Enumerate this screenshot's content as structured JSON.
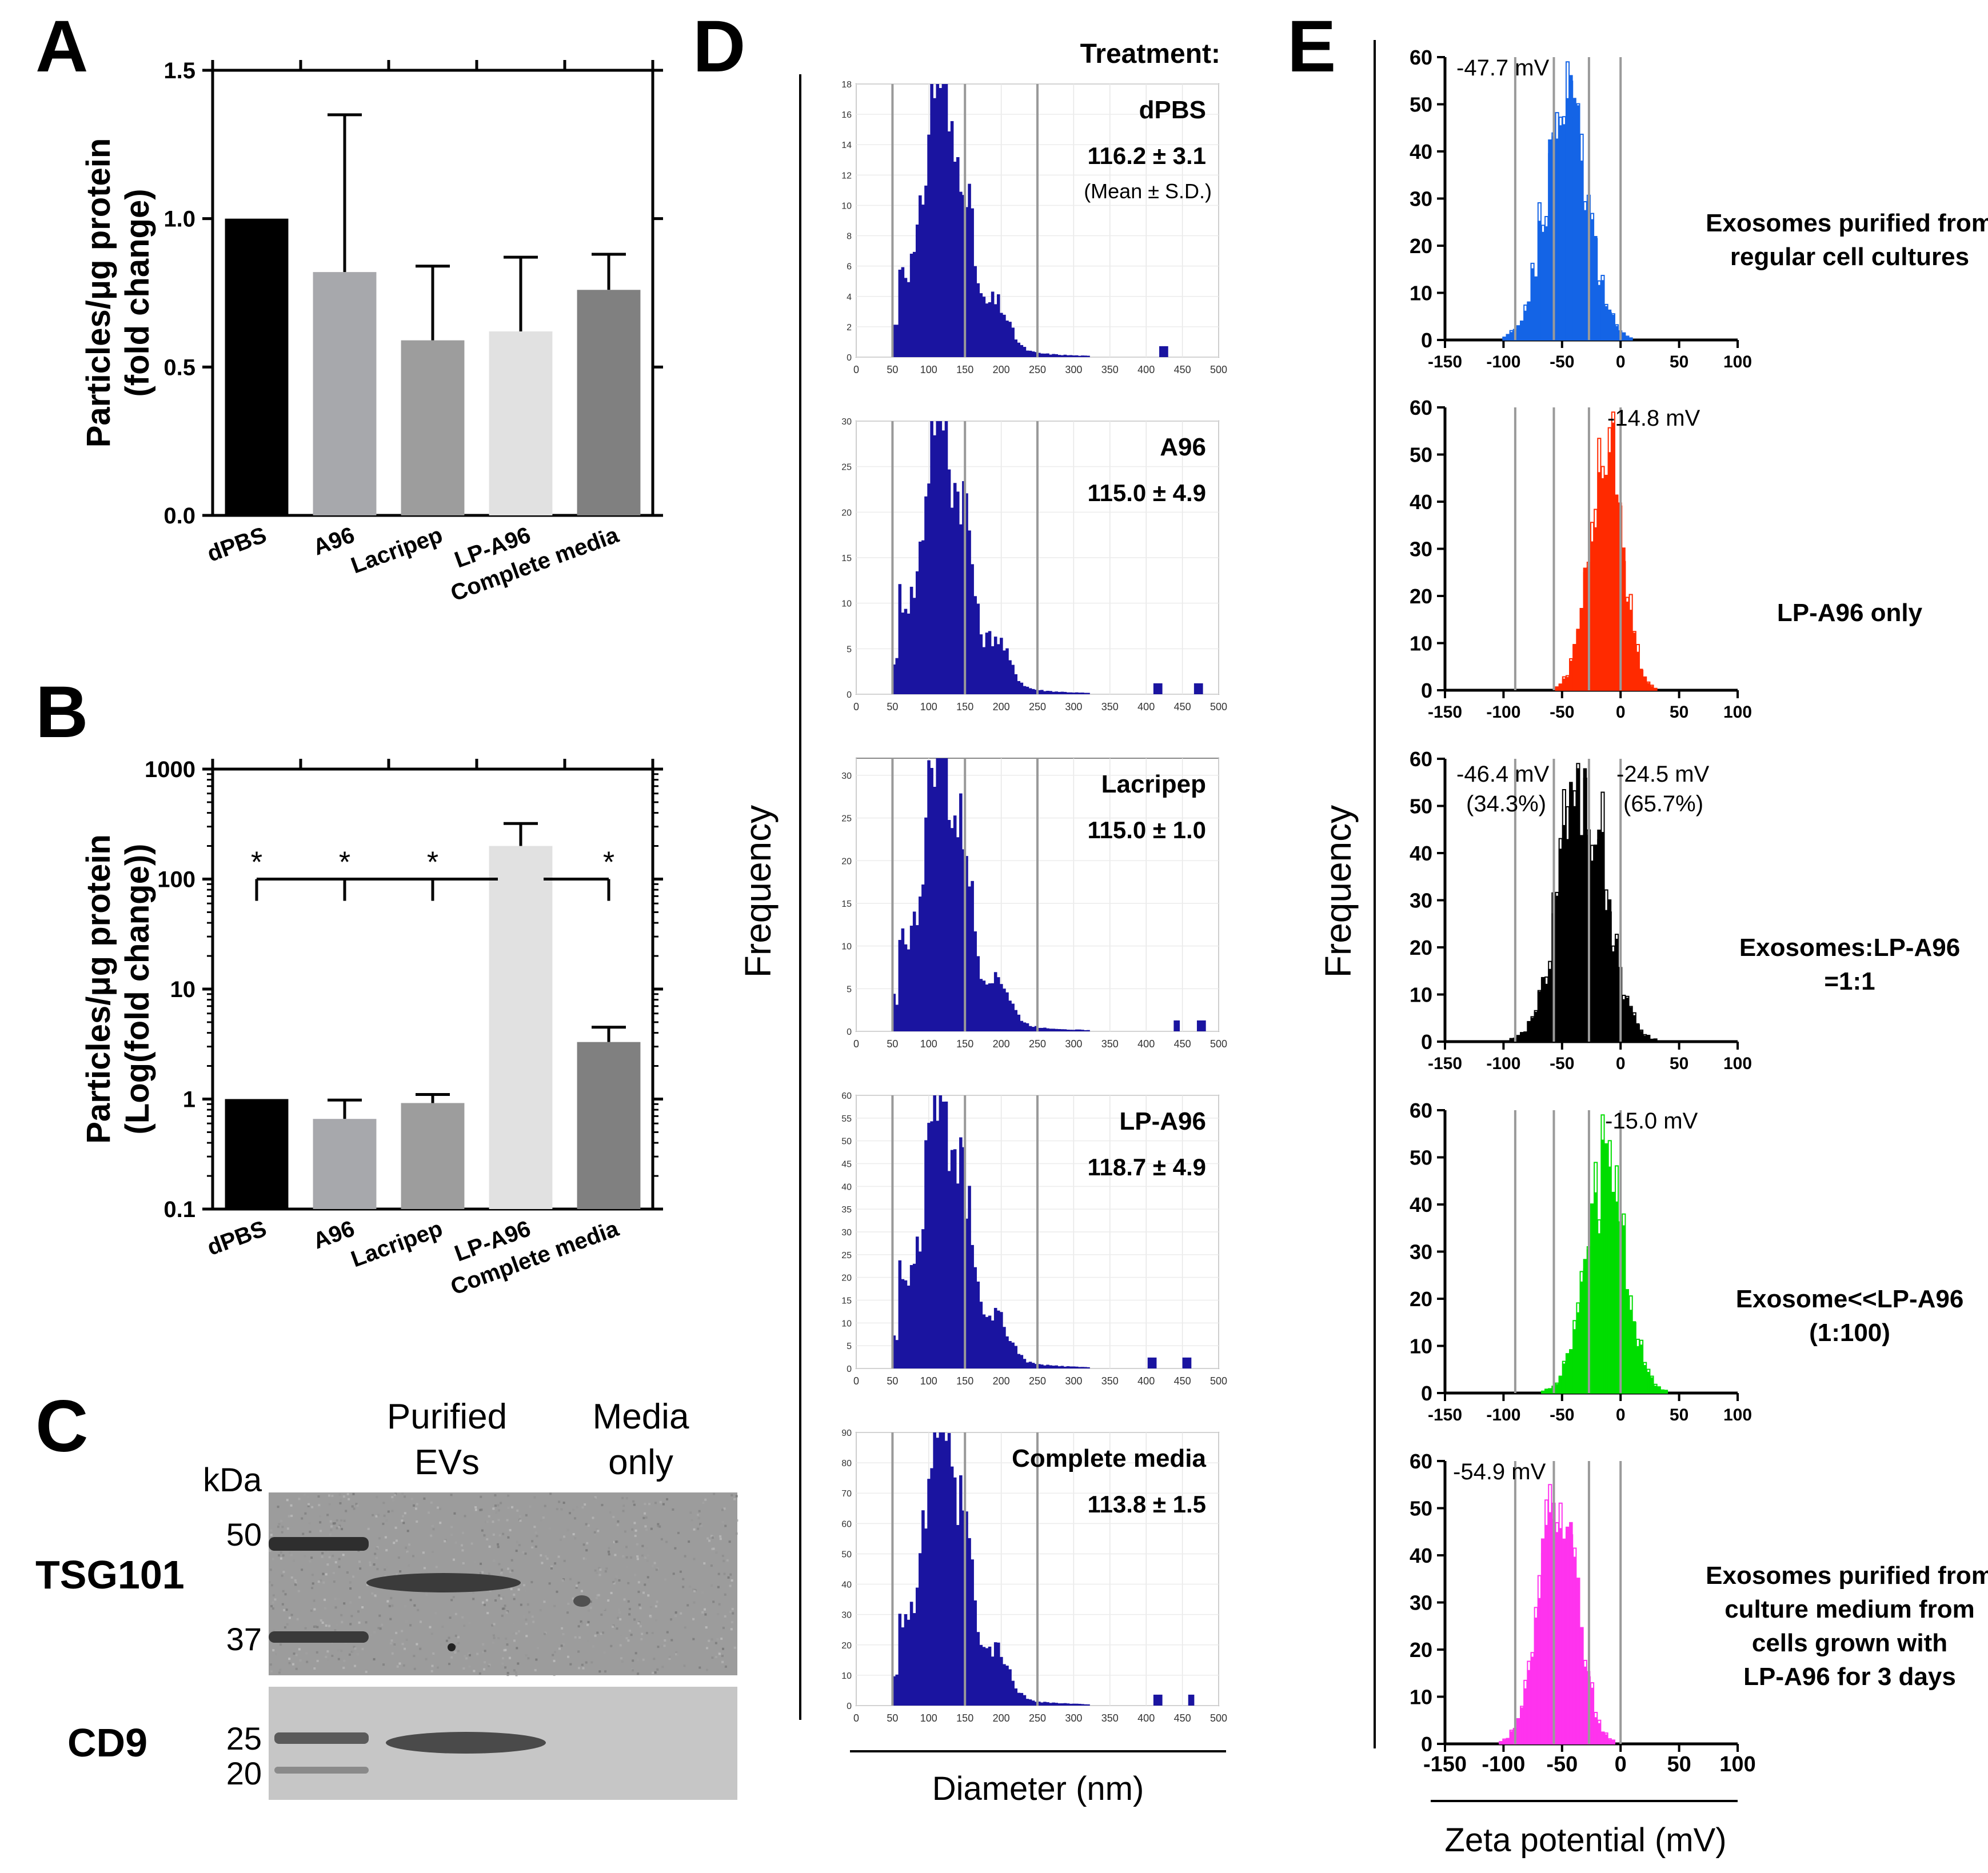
{
  "panel_letters": {
    "A": "A",
    "B": "B",
    "C": "C",
    "D": "D",
    "E": "E"
  },
  "chart_data": [
    {
      "panel": "A",
      "type": "bar",
      "ylabel_lines": [
        "Particles/μg protein",
        "(fold change)"
      ],
      "categories": [
        "dPBS",
        "A96",
        "Lacripep",
        "LP-A96",
        "Complete media"
      ],
      "values": [
        1.0,
        0.82,
        0.59,
        0.62,
        0.76
      ],
      "errors": [
        0.0,
        0.53,
        0.25,
        0.25,
        0.12
      ],
      "colors": [
        "#000000",
        "#a7a8ac",
        "#9d9d9d",
        "#e1e1e1",
        "#808080"
      ],
      "ylim": [
        0,
        1.5
      ],
      "yticks": [
        0,
        0.5,
        1.0,
        1.5
      ],
      "ytick_labels": [
        "0.0",
        "0.5",
        "1.0",
        "1.5"
      ]
    },
    {
      "panel": "B",
      "type": "bar",
      "yscale": "log",
      "ylabel_lines": [
        "Particles/μg protein",
        "(Log(fold change))"
      ],
      "categories": [
        "dPBS",
        "A96",
        "Lacripep",
        "LP-A96",
        "Complete media"
      ],
      "values": [
        1.0,
        0.66,
        0.92,
        200,
        3.3
      ],
      "error_upper": [
        1.0,
        0.98,
        1.1,
        320,
        4.5
      ],
      "colors": [
        "#000000",
        "#a7a8ac",
        "#9d9d9d",
        "#e1e1e1",
        "#808080"
      ],
      "ylim": [
        0.1,
        1000
      ],
      "yticks": [
        0.1,
        1,
        10,
        100,
        1000
      ],
      "ytick_labels": [
        "0.1",
        "1",
        "10",
        "100",
        "1000"
      ],
      "significance_marker": "*"
    },
    {
      "panel": "D",
      "type": "bar",
      "header": "Treatment:",
      "ylabel": "Frequency",
      "xlabel": "Diameter (nm)",
      "xlim": [
        0,
        500
      ],
      "xticks": [
        0,
        50,
        100,
        150,
        200,
        250,
        300,
        350,
        400,
        450,
        500
      ],
      "ref_lines": [
        50,
        150,
        250
      ],
      "bar_color": "#1a14a0",
      "subplots": [
        {
          "name": "dPBS",
          "stat": "116.2 ± 3.1",
          "note": "(Mean ± S.D.)",
          "ymax": 18,
          "yticks": [
            0,
            2,
            4,
            6,
            8,
            10,
            12,
            14,
            16,
            18
          ],
          "peak": 17,
          "extra": [
            {
              "x": 422,
              "h": 0.8
            }
          ]
        },
        {
          "name": "A96",
          "stat": "115.0 ± 4.9",
          "note": "",
          "ymax": 30,
          "yticks": [
            0,
            5,
            10,
            15,
            20,
            25,
            30
          ],
          "peak": 29.5,
          "extra": [
            {
              "x": 415,
              "h": 0.5
            },
            {
              "x": 470,
              "h": 0.4
            }
          ]
        },
        {
          "name": "Lacripep",
          "stat": "115.0 ± 1.0",
          "note": "",
          "ymax": 32,
          "yticks": [
            0,
            5,
            10,
            15,
            20,
            25,
            30
          ],
          "peak": 31,
          "extra": [
            {
              "x": 440,
              "h": 0.6
            },
            {
              "x": 475,
              "h": 0.6
            }
          ]
        },
        {
          "name": "LP-A96",
          "stat": "118.7 ± 4.9",
          "note": "",
          "ymax": 60,
          "yticks": [
            0,
            5,
            10,
            15,
            20,
            25,
            30,
            35,
            40,
            45,
            50,
            55,
            60
          ],
          "peak": 57,
          "extra": [
            {
              "x": 405,
              "h": 1
            },
            {
              "x": 455,
              "h": 0.8
            }
          ]
        },
        {
          "name": "Complete media",
          "stat": "113.8 ± 1.5",
          "note": "",
          "ymax": 90,
          "yticks": [
            0,
            10,
            20,
            30,
            40,
            50,
            60,
            70,
            80,
            90
          ],
          "peak": 86,
          "extra": [
            {
              "x": 415,
              "h": 1
            },
            {
              "x": 460,
              "h": 0.8
            }
          ]
        }
      ]
    },
    {
      "panel": "E",
      "type": "bar",
      "ylabel": "Frequency",
      "xlabel": "Zeta potential (mV)",
      "xlim": [
        -150,
        100
      ],
      "xticks": [
        -150,
        -100,
        -50,
        0,
        50,
        100
      ],
      "ylim": [
        0,
        60
      ],
      "yticks": [
        0,
        10,
        20,
        30,
        40,
        50,
        60
      ],
      "ref_lines": [
        -90,
        -57,
        -27,
        0
      ],
      "subplots": [
        {
          "color": "#1464e6",
          "mean": -47.7,
          "sd": 18,
          "peak": 52,
          "labels": [
            "-47.7 mV"
          ],
          "desc": [
            "Exosomes purified from",
            "regular cell cultures"
          ]
        },
        {
          "color": "#ff2a00",
          "mean": -14.8,
          "sd": 14,
          "peak": 55,
          "labels": [
            "-14.8 mV"
          ],
          "desc": [
            "LP-A96 only"
          ]
        },
        {
          "color": "#000000",
          "mean": -34,
          "sd": 20,
          "peak": 55,
          "labels": [
            "-46.4 mV",
            "(34.3%)",
            "-24.5 mV",
            "(65.7%)"
          ],
          "desc": [
            "Exosomes:LP-A96",
            "=1:1"
          ]
        },
        {
          "color": "#00dd00",
          "mean": -15.0,
          "sd": 17,
          "peak": 48,
          "labels": [
            "-15.0 mV"
          ],
          "desc": [
            "Exosome<<LP-A96",
            "(1:100)"
          ]
        },
        {
          "color": "#ff33ee",
          "mean": -54.9,
          "sd": 16,
          "peak": 54,
          "labels": [
            "-54.9 mV"
          ],
          "desc": [
            "Exosomes purified from",
            "culture medium from",
            "cells grown with",
            "LP-A96 for 3 days"
          ]
        }
      ]
    }
  ],
  "western_blot": {
    "kda_label": "kDa",
    "col_headers": [
      [
        "Purified",
        "EVs"
      ],
      [
        "Media",
        "only"
      ]
    ],
    "rows": [
      "TSG101",
      "CD9"
    ],
    "markers_top": [
      "50",
      "37"
    ],
    "markers_bottom": [
      "25",
      "20"
    ]
  }
}
